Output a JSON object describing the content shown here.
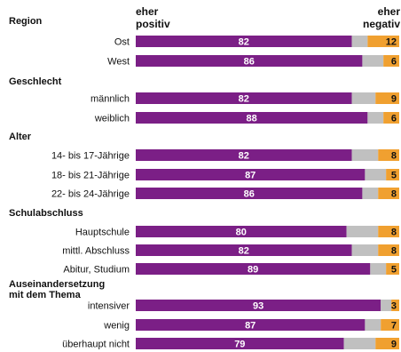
{
  "chart_data": {
    "type": "bar",
    "stacked": true,
    "orientation": "horizontal",
    "range": [
      0,
      100
    ],
    "left_caption": [
      "eher",
      "positiv"
    ],
    "right_caption": [
      "eher",
      "negativ"
    ],
    "colors": {
      "positive": "#7b1f86",
      "neutral": "#c0c0c0",
      "negative": "#f0a030"
    },
    "groups": [
      {
        "title": [
          "Region"
        ],
        "rows": [
          {
            "label": "Ost",
            "positive": 82,
            "negative": 12
          },
          {
            "label": "West",
            "positive": 86,
            "negative": 6
          }
        ]
      },
      {
        "title": [
          "Geschlecht"
        ],
        "rows": [
          {
            "label": "männlich",
            "positive": 82,
            "negative": 9
          },
          {
            "label": "weiblich",
            "positive": 88,
            "negative": 6
          }
        ]
      },
      {
        "title": [
          "Alter"
        ],
        "rows": [
          {
            "label": "14- bis 17-Jährige",
            "positive": 82,
            "negative": 8
          },
          {
            "label": "18- bis 21-Jährige",
            "positive": 87,
            "negative": 5
          },
          {
            "label": "22- bis 24-Jährige",
            "positive": 86,
            "negative": 8
          }
        ]
      },
      {
        "title": [
          "Schulabschluss"
        ],
        "rows": [
          {
            "label": "Hauptschule",
            "positive": 80,
            "negative": 8
          },
          {
            "label": "mittl. Abschluss",
            "positive": 82,
            "negative": 8
          },
          {
            "label": "Abitur, Studium",
            "positive": 89,
            "negative": 5
          }
        ]
      },
      {
        "title": [
          "Auseinandersetzung",
          "mit dem Thema"
        ],
        "rows": [
          {
            "label": "intensiver",
            "positive": 93,
            "negative": 3
          },
          {
            "label": "wenig",
            "positive": 87,
            "negative": 7
          },
          {
            "label": "überhaupt nicht",
            "positive": 79,
            "negative": 9
          }
        ]
      }
    ]
  }
}
